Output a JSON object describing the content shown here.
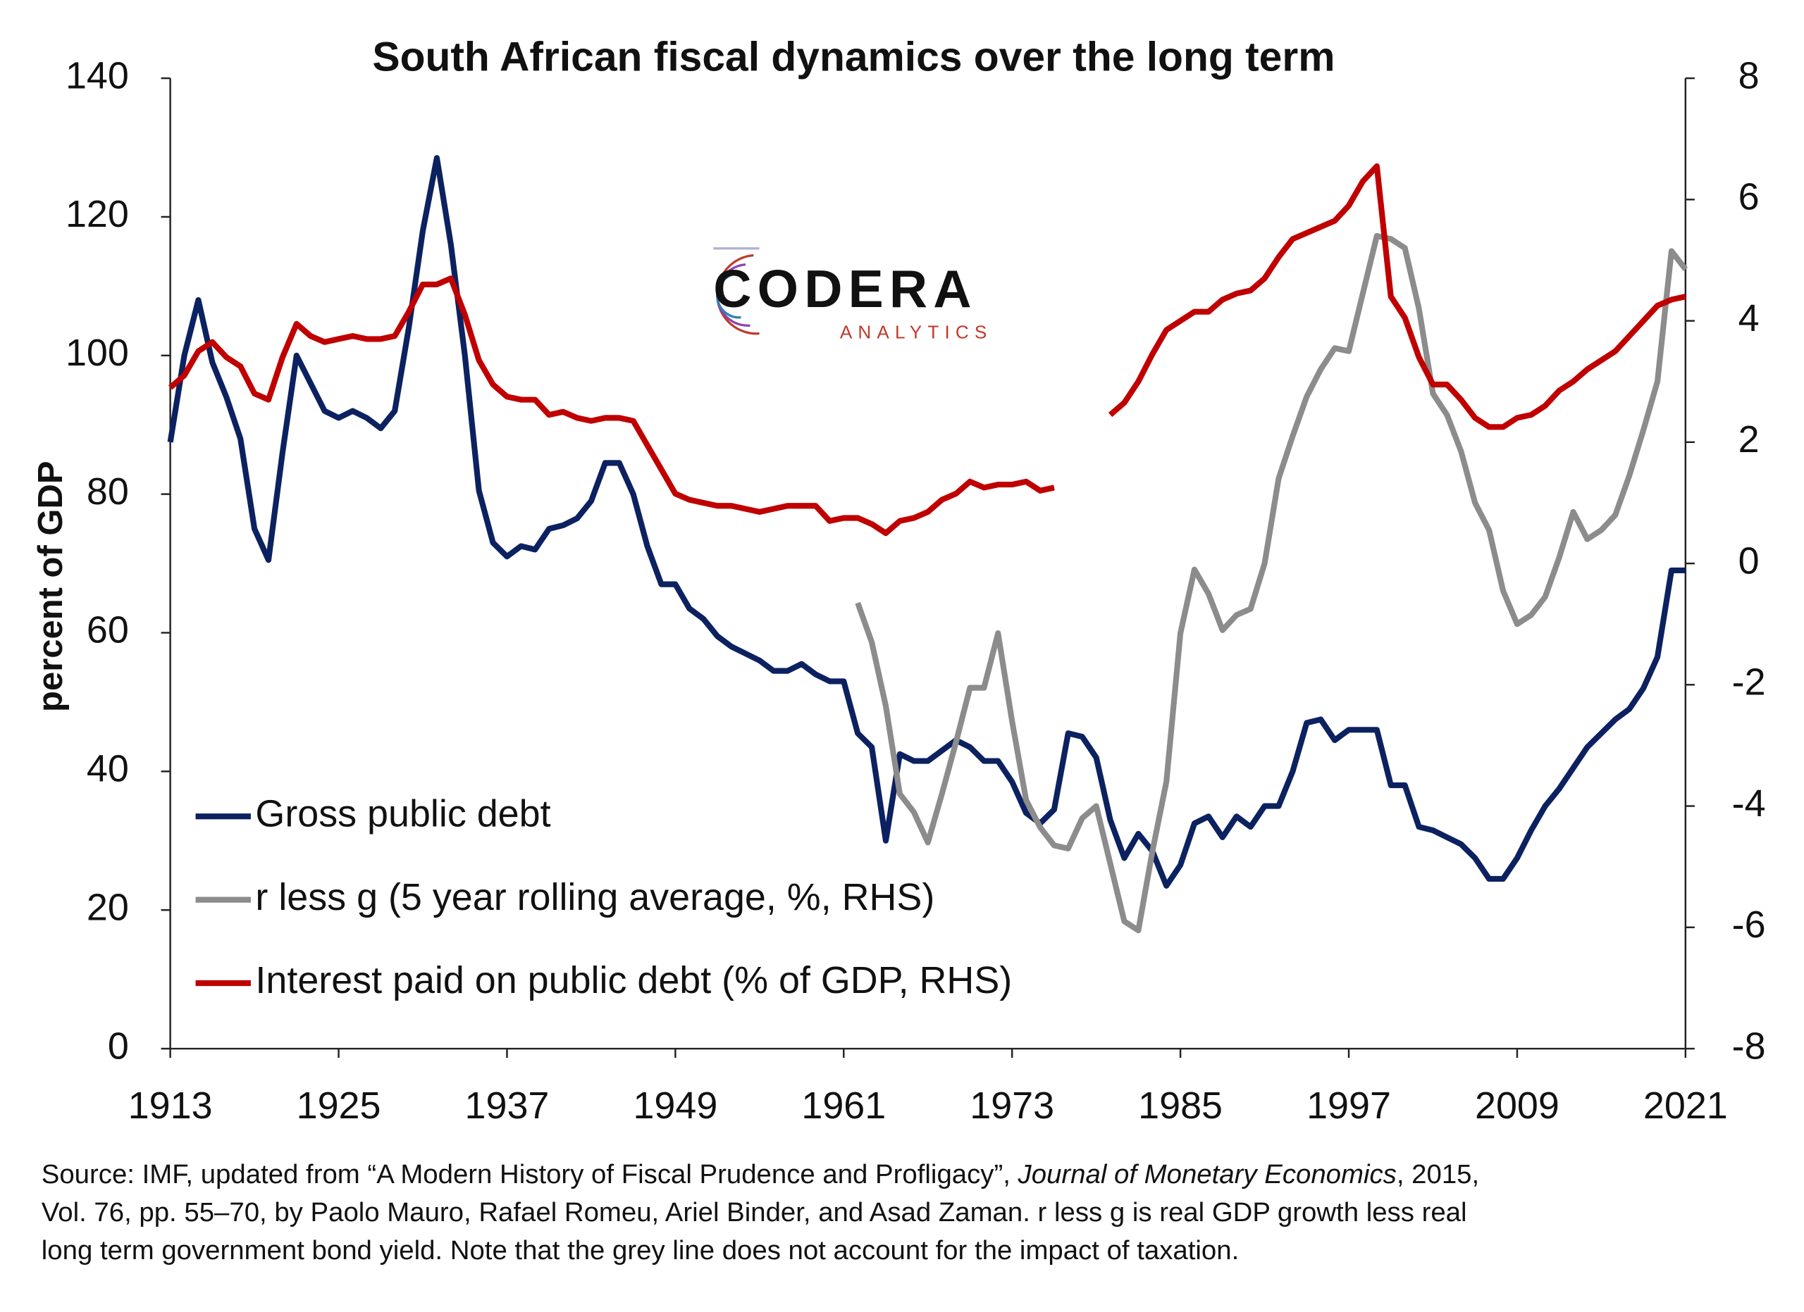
{
  "chart_data": {
    "type": "line",
    "title": "South African fiscal dynamics over the long term",
    "y_label": "percent of GDP",
    "logo": {
      "name": "CODERA",
      "sub": "ANALYTICS"
    },
    "source_note": {
      "line1_start": "Source: IMF, updated from “A Modern History of Fiscal Prudence and Profligacy”, ",
      "line1_italic": "Journal of Monetary Economics",
      "line1_end": ", 2015,",
      "line2": "Vol. 76, pp. 55–70, by Paolo Mauro, Rafael Romeu, Ariel Binder, and Asad Zaman. r less g is real GDP growth less real",
      "line3": "long term government bond yield. Note that the grey line does not account for the impact of taxation."
    },
    "x": [
      1913,
      1914,
      1915,
      1916,
      1917,
      1918,
      1919,
      1920,
      1921,
      1922,
      1923,
      1924,
      1925,
      1926,
      1927,
      1928,
      1929,
      1930,
      1931,
      1932,
      1933,
      1934,
      1935,
      1936,
      1937,
      1938,
      1939,
      1940,
      1941,
      1942,
      1943,
      1944,
      1945,
      1946,
      1947,
      1948,
      1949,
      1950,
      1951,
      1952,
      1953,
      1954,
      1955,
      1956,
      1957,
      1958,
      1959,
      1960,
      1961,
      1962,
      1963,
      1964,
      1965,
      1966,
      1967,
      1968,
      1969,
      1970,
      1971,
      1972,
      1973,
      1974,
      1975,
      1976,
      1977,
      1978,
      1979,
      1980,
      1981,
      1982,
      1983,
      1984,
      1985,
      1986,
      1987,
      1988,
      1989,
      1990,
      1991,
      1992,
      1993,
      1994,
      1995,
      1996,
      1997,
      1998,
      1999,
      2000,
      2001,
      2002,
      2003,
      2004,
      2005,
      2006,
      2007,
      2008,
      2009,
      2010,
      2011,
      2012,
      2013,
      2014,
      2015,
      2016,
      2017,
      2018,
      2019,
      2020,
      2021
    ],
    "xlim": [
      1913,
      2021
    ],
    "xticks": [
      1913,
      1925,
      1937,
      1949,
      1961,
      1973,
      1985,
      1997,
      2009,
      2021
    ],
    "ylim": [
      0,
      140
    ],
    "yticks": [
      0,
      20,
      40,
      60,
      80,
      100,
      120,
      140
    ],
    "y2lim": [
      -8,
      8
    ],
    "y2ticks": [
      -8,
      -6,
      -4,
      -2,
      0,
      2,
      4,
      6,
      8
    ],
    "legend": "lower left",
    "series": [
      {
        "name": "Gross public debt",
        "color": "#0c2160",
        "values": [
          87.5,
          100,
          108,
          99,
          94,
          88,
          75,
          70.5,
          86,
          100,
          96,
          92,
          91,
          92,
          91,
          89.5,
          92,
          104,
          118,
          128.5,
          116,
          100,
          80.5,
          73,
          71,
          72.5,
          72,
          75,
          75.5,
          76.5,
          79,
          84.5,
          84.5,
          80,
          72.5,
          67,
          67,
          63.5,
          62,
          59.5,
          58,
          57,
          56,
          54.5,
          54.5,
          55.5,
          54,
          53,
          53,
          45.5,
          43.5,
          30,
          42.5,
          41.5,
          41.5,
          43,
          44.5,
          43.5,
          41.5,
          41.5,
          38.5,
          34,
          32.5,
          34.5,
          45.5,
          45,
          42,
          33,
          27.5,
          31,
          28.5,
          23.5,
          26.5,
          32.5,
          33.5,
          30.5,
          33.5,
          32,
          35,
          35,
          40,
          47,
          47.5,
          44.5,
          46,
          46,
          46,
          38,
          38,
          32,
          31.5,
          30.5,
          29.5,
          27.5,
          24.5,
          24.5,
          27.5,
          31.5,
          35,
          37.5,
          40.5,
          43.5,
          45.5,
          47.5,
          49,
          52,
          56.5,
          69,
          69
        ]
      },
      {
        "name": "r less g (5 year rolling average, %, RHS)",
        "color": "#8c8c8c",
        "axis": "y2",
        "values": [
          null,
          null,
          null,
          null,
          null,
          null,
          null,
          null,
          null,
          null,
          null,
          null,
          null,
          null,
          null,
          null,
          null,
          null,
          null,
          null,
          null,
          null,
          null,
          null,
          null,
          null,
          null,
          null,
          null,
          null,
          null,
          null,
          null,
          null,
          null,
          null,
          null,
          null,
          null,
          null,
          null,
          null,
          null,
          null,
          null,
          null,
          null,
          null,
          null,
          -0.65,
          -1.3,
          -2.35,
          -3.8,
          -4.1,
          -4.6,
          -3.8,
          -2.95,
          -2.05,
          -2.05,
          -1.15,
          -2.6,
          -3.9,
          -4.35,
          -4.65,
          -4.7,
          -4.2,
          -4.0,
          -4.95,
          -5.9,
          -6.05,
          -4.75,
          -3.6,
          -1.15,
          -0.1,
          -0.5,
          -1.1,
          -0.85,
          -0.75,
          0.0,
          1.4,
          2.1,
          2.75,
          3.2,
          3.55,
          3.5,
          4.45,
          5.4,
          5.35,
          5.2,
          4.2,
          2.8,
          2.45,
          1.85,
          1.0,
          0.55,
          -0.45,
          -1.0,
          -0.85,
          -0.55,
          0.1,
          0.85,
          0.4,
          0.55,
          0.8,
          1.45,
          2.2,
          3.0,
          5.15,
          4.85
        ]
      },
      {
        "name": "Interest paid on public debt (% of GDP, RHS)",
        "color": "#c00000",
        "axis": "y2",
        "values": [
          2.9,
          3.1,
          3.5,
          3.65,
          3.4,
          3.25,
          2.8,
          2.7,
          3.4,
          3.95,
          3.75,
          3.65,
          3.7,
          3.75,
          3.7,
          3.7,
          3.75,
          4.15,
          4.6,
          4.6,
          4.7,
          4.1,
          3.35,
          2.95,
          2.75,
          2.7,
          2.7,
          2.45,
          2.5,
          2.4,
          2.35,
          2.4,
          2.4,
          2.35,
          1.95,
          1.55,
          1.15,
          1.05,
          1.0,
          0.95,
          0.95,
          0.9,
          0.85,
          0.9,
          0.95,
          0.95,
          0.95,
          0.7,
          0.75,
          0.75,
          0.65,
          0.5,
          0.7,
          0.75,
          0.85,
          1.05,
          1.15,
          1.35,
          1.25,
          1.3,
          1.3,
          1.35,
          1.2,
          1.25,
          null,
          null,
          null,
          2.45,
          2.65,
          3.0,
          3.45,
          3.85,
          4.0,
          4.15,
          4.15,
          4.35,
          4.45,
          4.5,
          4.7,
          5.05,
          5.35,
          5.45,
          5.55,
          5.65,
          5.9,
          6.3,
          6.55,
          4.4,
          4.05,
          3.4,
          2.95,
          2.95,
          2.7,
          2.4,
          2.25,
          2.25,
          2.4,
          2.45,
          2.6,
          2.85,
          3.0,
          3.2,
          3.35,
          3.5,
          3.75,
          4.0,
          4.25,
          4.35,
          4.4
        ]
      }
    ]
  }
}
